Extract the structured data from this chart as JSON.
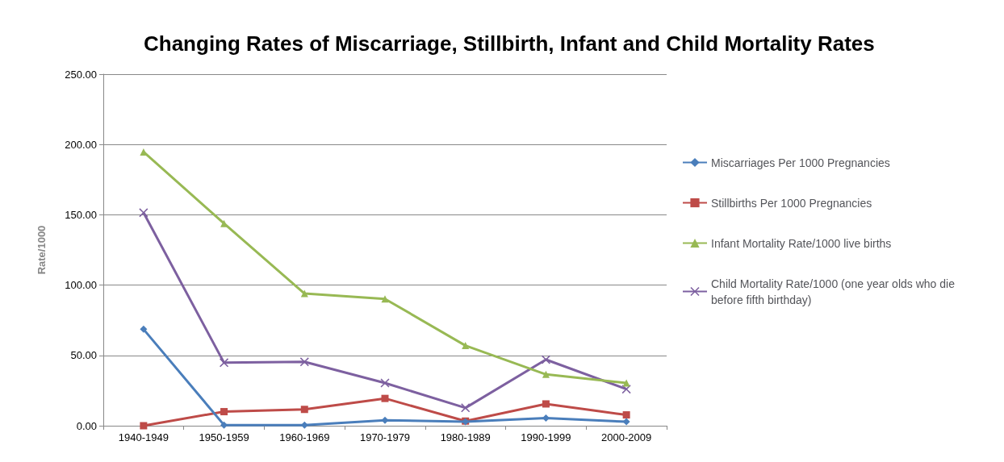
{
  "chart_data": {
    "type": "line",
    "title": "Changing Rates of Miscarriage, Stillbirth, Infant and Child Mortality Rates",
    "ylabel": "Rate/1000",
    "categories": [
      "1940-1949",
      "1950-1959",
      "1960-1969",
      "1970-1979",
      "1980-1989",
      "1990-1999",
      "2000-2009"
    ],
    "series": [
      {
        "name": "Miscarriages Per 1000 Pregnancies",
        "color": "#4a7ebb",
        "marker": "diamond",
        "values": [
          68.6,
          0.5,
          0.5,
          3.9,
          2.8,
          5.5,
          2.8
        ]
      },
      {
        "name": "Stillbirths Per 1000 Pregnancies",
        "color": "#be4b48",
        "marker": "square",
        "values": [
          0,
          10,
          11.6,
          19.4,
          3.3,
          15.5,
          7.7
        ]
      },
      {
        "name": "Infant Mortality Rate/1000 live births",
        "color": "#98b954",
        "marker": "triangle",
        "values": [
          194.7,
          143.8,
          94,
          90.2,
          57,
          36.5,
          30.4
        ]
      },
      {
        "name": "Child Mortality Rate/1000 (one year olds who die before fifth birthday)",
        "color": "#7d60a0",
        "marker": "cross",
        "values": [
          151.5,
          44.8,
          45.4,
          30.4,
          12.7,
          47,
          26
        ]
      }
    ],
    "ylim": [
      0,
      250
    ],
    "yticks": [
      {
        "value": 0,
        "label": "0.00"
      },
      {
        "value": 50,
        "label": "50.00"
      },
      {
        "value": 100,
        "label": "100.00"
      },
      {
        "value": 150,
        "label": "150.00"
      },
      {
        "value": 200,
        "label": "200.00"
      },
      {
        "value": 250,
        "label": "250.00"
      }
    ],
    "grid": "y",
    "legend": "right"
  }
}
